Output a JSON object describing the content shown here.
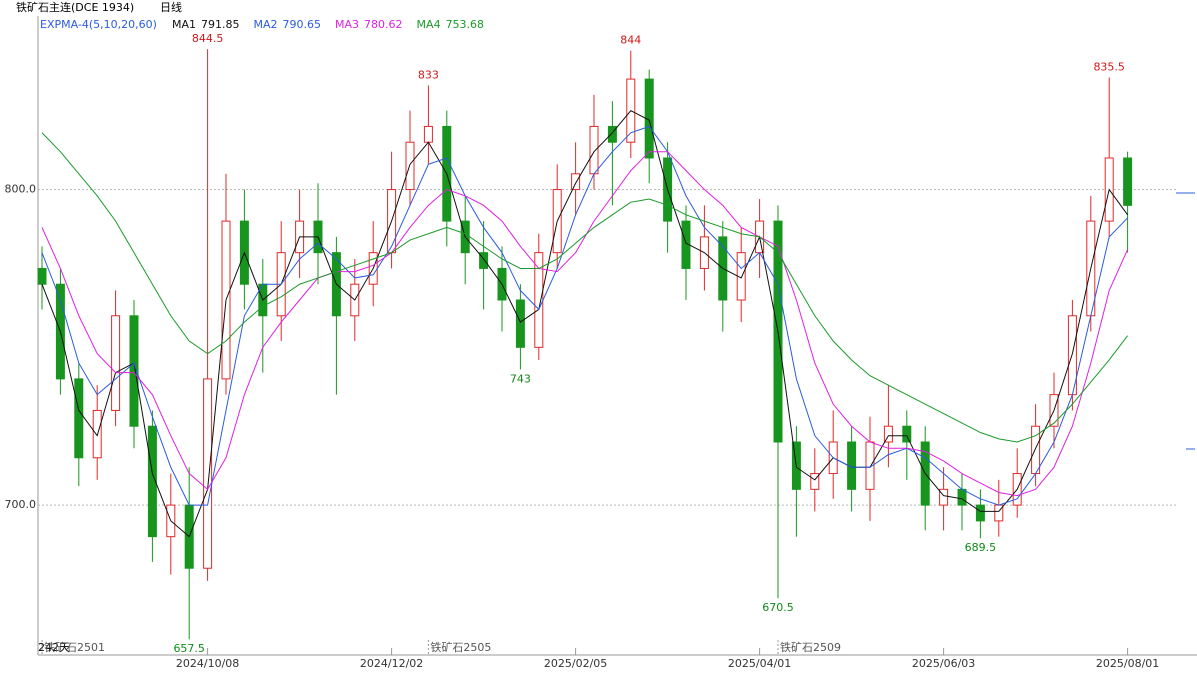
{
  "chart_data": {
    "type": "candlestick",
    "title": "铁矿石主连(DCE 1934)",
    "period": "日线",
    "indicator": "EXPMA-4(5,10,20,60)",
    "day_count": "242天",
    "categories": [
      null,
      null,
      null,
      null,
      null,
      null,
      null,
      null,
      null,
      "2024/10/08",
      null,
      null,
      null,
      null,
      null,
      null,
      null,
      null,
      null,
      "2024/12/02",
      null,
      null,
      null,
      null,
      null,
      null,
      null,
      null,
      null,
      "2025/02/05",
      null,
      null,
      null,
      null,
      null,
      null,
      null,
      null,
      null,
      "2025/04/01",
      null,
      null,
      null,
      null,
      null,
      null,
      null,
      null,
      null,
      "2025/06/03",
      null,
      null,
      null,
      null,
      null,
      null,
      null,
      null,
      null,
      "2025/08/01"
    ],
    "open": [
      775,
      770,
      740,
      715,
      730,
      760,
      725,
      690,
      700,
      680,
      740,
      790,
      770,
      760,
      780,
      790,
      780,
      760,
      770,
      780,
      800,
      815,
      820,
      790,
      780,
      775,
      765,
      750,
      780,
      800,
      805,
      820,
      815,
      835,
      810,
      790,
      775,
      785,
      765,
      780,
      790,
      720,
      705,
      710,
      720,
      705,
      720,
      725,
      720,
      700,
      705,
      700,
      695,
      700,
      710,
      725,
      735,
      760,
      790,
      810
    ],
    "high": [
      782,
      775,
      745,
      738,
      768,
      765,
      730,
      710,
      712,
      844.5,
      805,
      800,
      778,
      790,
      800,
      802,
      785,
      778,
      790,
      812,
      825,
      833,
      825,
      798,
      790,
      782,
      770,
      786,
      808,
      815,
      830,
      828,
      844,
      838,
      815,
      795,
      795,
      790,
      788,
      797,
      795,
      725,
      718,
      730,
      725,
      728,
      738,
      730,
      725,
      712,
      710,
      705,
      708,
      718,
      732,
      742,
      765,
      798,
      835.5,
      812
    ],
    "low": [
      762,
      735,
      706,
      708,
      725,
      718,
      682,
      678,
      657.5,
      676,
      735,
      762,
      742,
      752,
      772,
      770,
      735,
      752,
      763,
      775,
      795,
      808,
      782,
      770,
      762,
      755,
      743,
      746,
      775,
      792,
      800,
      795,
      810,
      802,
      780,
      765,
      768,
      755,
      758,
      772,
      670.5,
      690,
      698,
      702,
      698,
      695,
      712,
      708,
      692,
      692,
      692,
      689.5,
      690,
      696,
      706,
      718,
      730,
      755,
      785,
      780
    ],
    "close": [
      770,
      740,
      715,
      730,
      760,
      725,
      690,
      700,
      680,
      740,
      790,
      770,
      760,
      780,
      790,
      780,
      760,
      770,
      780,
      800,
      815,
      820,
      790,
      780,
      775,
      765,
      750,
      780,
      800,
      805,
      820,
      815,
      835,
      810,
      790,
      775,
      785,
      765,
      780,
      790,
      720,
      705,
      710,
      720,
      705,
      720,
      725,
      720,
      700,
      705,
      700,
      695,
      700,
      710,
      725,
      735,
      760,
      790,
      810,
      795
    ],
    "up_color": "#e02828",
    "down_color": "#18951e",
    "series": [
      {
        "name": "MA1",
        "latest": 791.85,
        "color": "#111111",
        "values": [
          770,
          755,
          730,
          722,
          742,
          745,
          710,
          695,
          690,
          705,
          765,
          780,
          765,
          770,
          785,
          785,
          770,
          765,
          775,
          790,
          808,
          815,
          805,
          785,
          778,
          770,
          758,
          762,
          790,
          802,
          812,
          818,
          825,
          822,
          800,
          783,
          780,
          775,
          772,
          785,
          755,
          712,
          708,
          715,
          712,
          712,
          722,
          722,
          710,
          703,
          702,
          698,
          698,
          705,
          718,
          730,
          748,
          775,
          800,
          792
        ]
      },
      {
        "name": "MA2",
        "latest": 790.65,
        "color": "#2a5ce0",
        "values": [
          780,
          765,
          745,
          735,
          740,
          745,
          728,
          712,
          700,
          700,
          730,
          760,
          770,
          770,
          778,
          783,
          778,
          772,
          773,
          782,
          795,
          808,
          810,
          798,
          788,
          780,
          768,
          762,
          775,
          792,
          805,
          812,
          818,
          820,
          812,
          798,
          788,
          782,
          775,
          780,
          770,
          740,
          722,
          715,
          712,
          712,
          716,
          718,
          715,
          710,
          705,
          702,
          700,
          702,
          710,
          720,
          735,
          760,
          785,
          791
        ]
      },
      {
        "name": "MA3",
        "latest": 780.62,
        "color": "#e020e0",
        "values": [
          788,
          775,
          760,
          748,
          742,
          742,
          735,
          722,
          710,
          705,
          715,
          735,
          750,
          758,
          765,
          772,
          774,
          774,
          776,
          780,
          788,
          795,
          800,
          798,
          795,
          790,
          782,
          775,
          774,
          780,
          790,
          798,
          806,
          812,
          812,
          806,
          800,
          795,
          788,
          785,
          782,
          765,
          745,
          732,
          725,
          720,
          718,
          718,
          717,
          714,
          710,
          707,
          704,
          703,
          705,
          712,
          725,
          745,
          768,
          781
        ]
      },
      {
        "name": "MA4",
        "latest": 753.68,
        "color": "#1a9a2a",
        "values": [
          818,
          812,
          805,
          798,
          790,
          780,
          770,
          760,
          752,
          748,
          752,
          758,
          763,
          766,
          770,
          772,
          774,
          776,
          778,
          780,
          784,
          786,
          788,
          786,
          782,
          778,
          775,
          775,
          778,
          783,
          788,
          792,
          796,
          797,
          795,
          792,
          790,
          788,
          786,
          785,
          780,
          770,
          760,
          752,
          746,
          741,
          738,
          735,
          732,
          729,
          726,
          723,
          721,
          720,
          722,
          726,
          732,
          739,
          746,
          753.68
        ]
      }
    ],
    "high_labels_at": [
      9,
      21,
      32,
      58
    ],
    "low_labels_at": [
      8,
      26,
      40,
      51
    ],
    "contracts": [
      {
        "index": 0,
        "label": "铁矿石2501"
      },
      {
        "index": 21,
        "label": "铁矿石2505"
      },
      {
        "index": 40,
        "label": "铁矿石2509"
      }
    ],
    "ylim": [
      652.5,
      855
    ],
    "yticks": [
      {
        "value": 700,
        "label": "700.0"
      },
      {
        "value": 800,
        "label": "800.0"
      }
    ],
    "grid": true
  }
}
